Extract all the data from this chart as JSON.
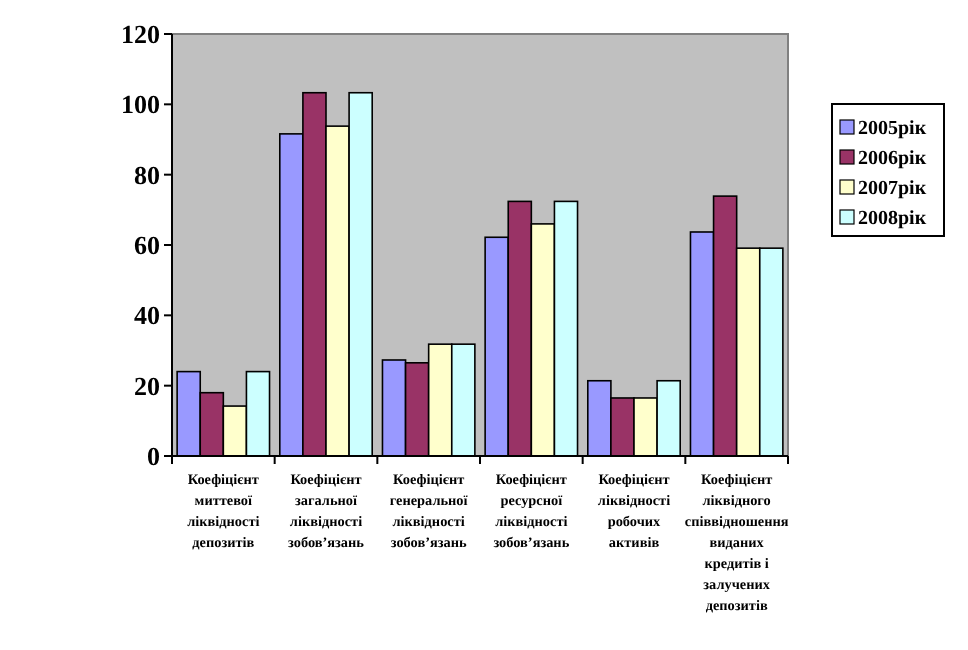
{
  "chart_data": {
    "type": "bar",
    "categories": [
      "Коефіцієнт миттевої ліквідності депозитів",
      "Коефіцієнт загальної ліквідності зобов’язань",
      "Коефіцієнт генеральної ліквідності зобов’язань",
      "Коефіцієнт ресурсної ліквідності зобов’язань",
      "Коефіцієнт ліквідності робочих активів",
      "Коефіцієнт ліквідного співвідношення виданих кредитів і залучених депозитів"
    ],
    "series": [
      {
        "name": "2005рік",
        "color": "#9999ff",
        "values": [
          24,
          91.6,
          27.3,
          62.2,
          21.4,
          63.7
        ]
      },
      {
        "name": "2006рік",
        "color": "#993366",
        "values": [
          18,
          103.3,
          26.5,
          72.4,
          16.5,
          73.9
        ]
      },
      {
        "name": "2007рік",
        "color": "#ffffcc",
        "values": [
          14.2,
          93.8,
          31.8,
          66,
          16.5,
          59.1
        ]
      },
      {
        "name": "2008рік",
        "color": "#ccffff",
        "values": [
          24,
          103.3,
          31.8,
          72.4,
          21.4,
          59.1
        ]
      }
    ],
    "ylim": [
      0,
      120
    ],
    "yticks": [
      0,
      20,
      40,
      60,
      80,
      100,
      120
    ],
    "grid": false,
    "legend": "right"
  }
}
